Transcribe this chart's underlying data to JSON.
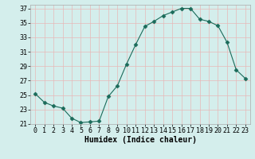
{
  "x": [
    0,
    1,
    2,
    3,
    4,
    5,
    6,
    7,
    8,
    9,
    10,
    11,
    12,
    13,
    14,
    15,
    16,
    17,
    18,
    19,
    20,
    21,
    22,
    23
  ],
  "y": [
    25.2,
    24.0,
    23.5,
    23.2,
    21.8,
    21.2,
    21.3,
    21.4,
    24.8,
    26.3,
    29.3,
    32.0,
    34.5,
    35.2,
    36.0,
    36.5,
    37.0,
    37.0,
    35.5,
    35.2,
    34.6,
    32.3,
    28.5,
    27.3
  ],
  "line_color": "#1a6b5a",
  "marker": "D",
  "marker_size": 2.5,
  "bg_color": "#d4eeec",
  "grid_color": "#b0d0cc",
  "xlabel": "Humidex (Indice chaleur)",
  "xlim": [
    -0.5,
    23.5
  ],
  "ylim": [
    21,
    37.5
  ],
  "yticks": [
    21,
    23,
    25,
    27,
    29,
    31,
    33,
    35,
    37
  ],
  "xticks": [
    0,
    1,
    2,
    3,
    4,
    5,
    6,
    7,
    8,
    9,
    10,
    11,
    12,
    13,
    14,
    15,
    16,
    17,
    18,
    19,
    20,
    21,
    22,
    23
  ],
  "xlabel_fontsize": 7,
  "tick_fontsize": 6
}
